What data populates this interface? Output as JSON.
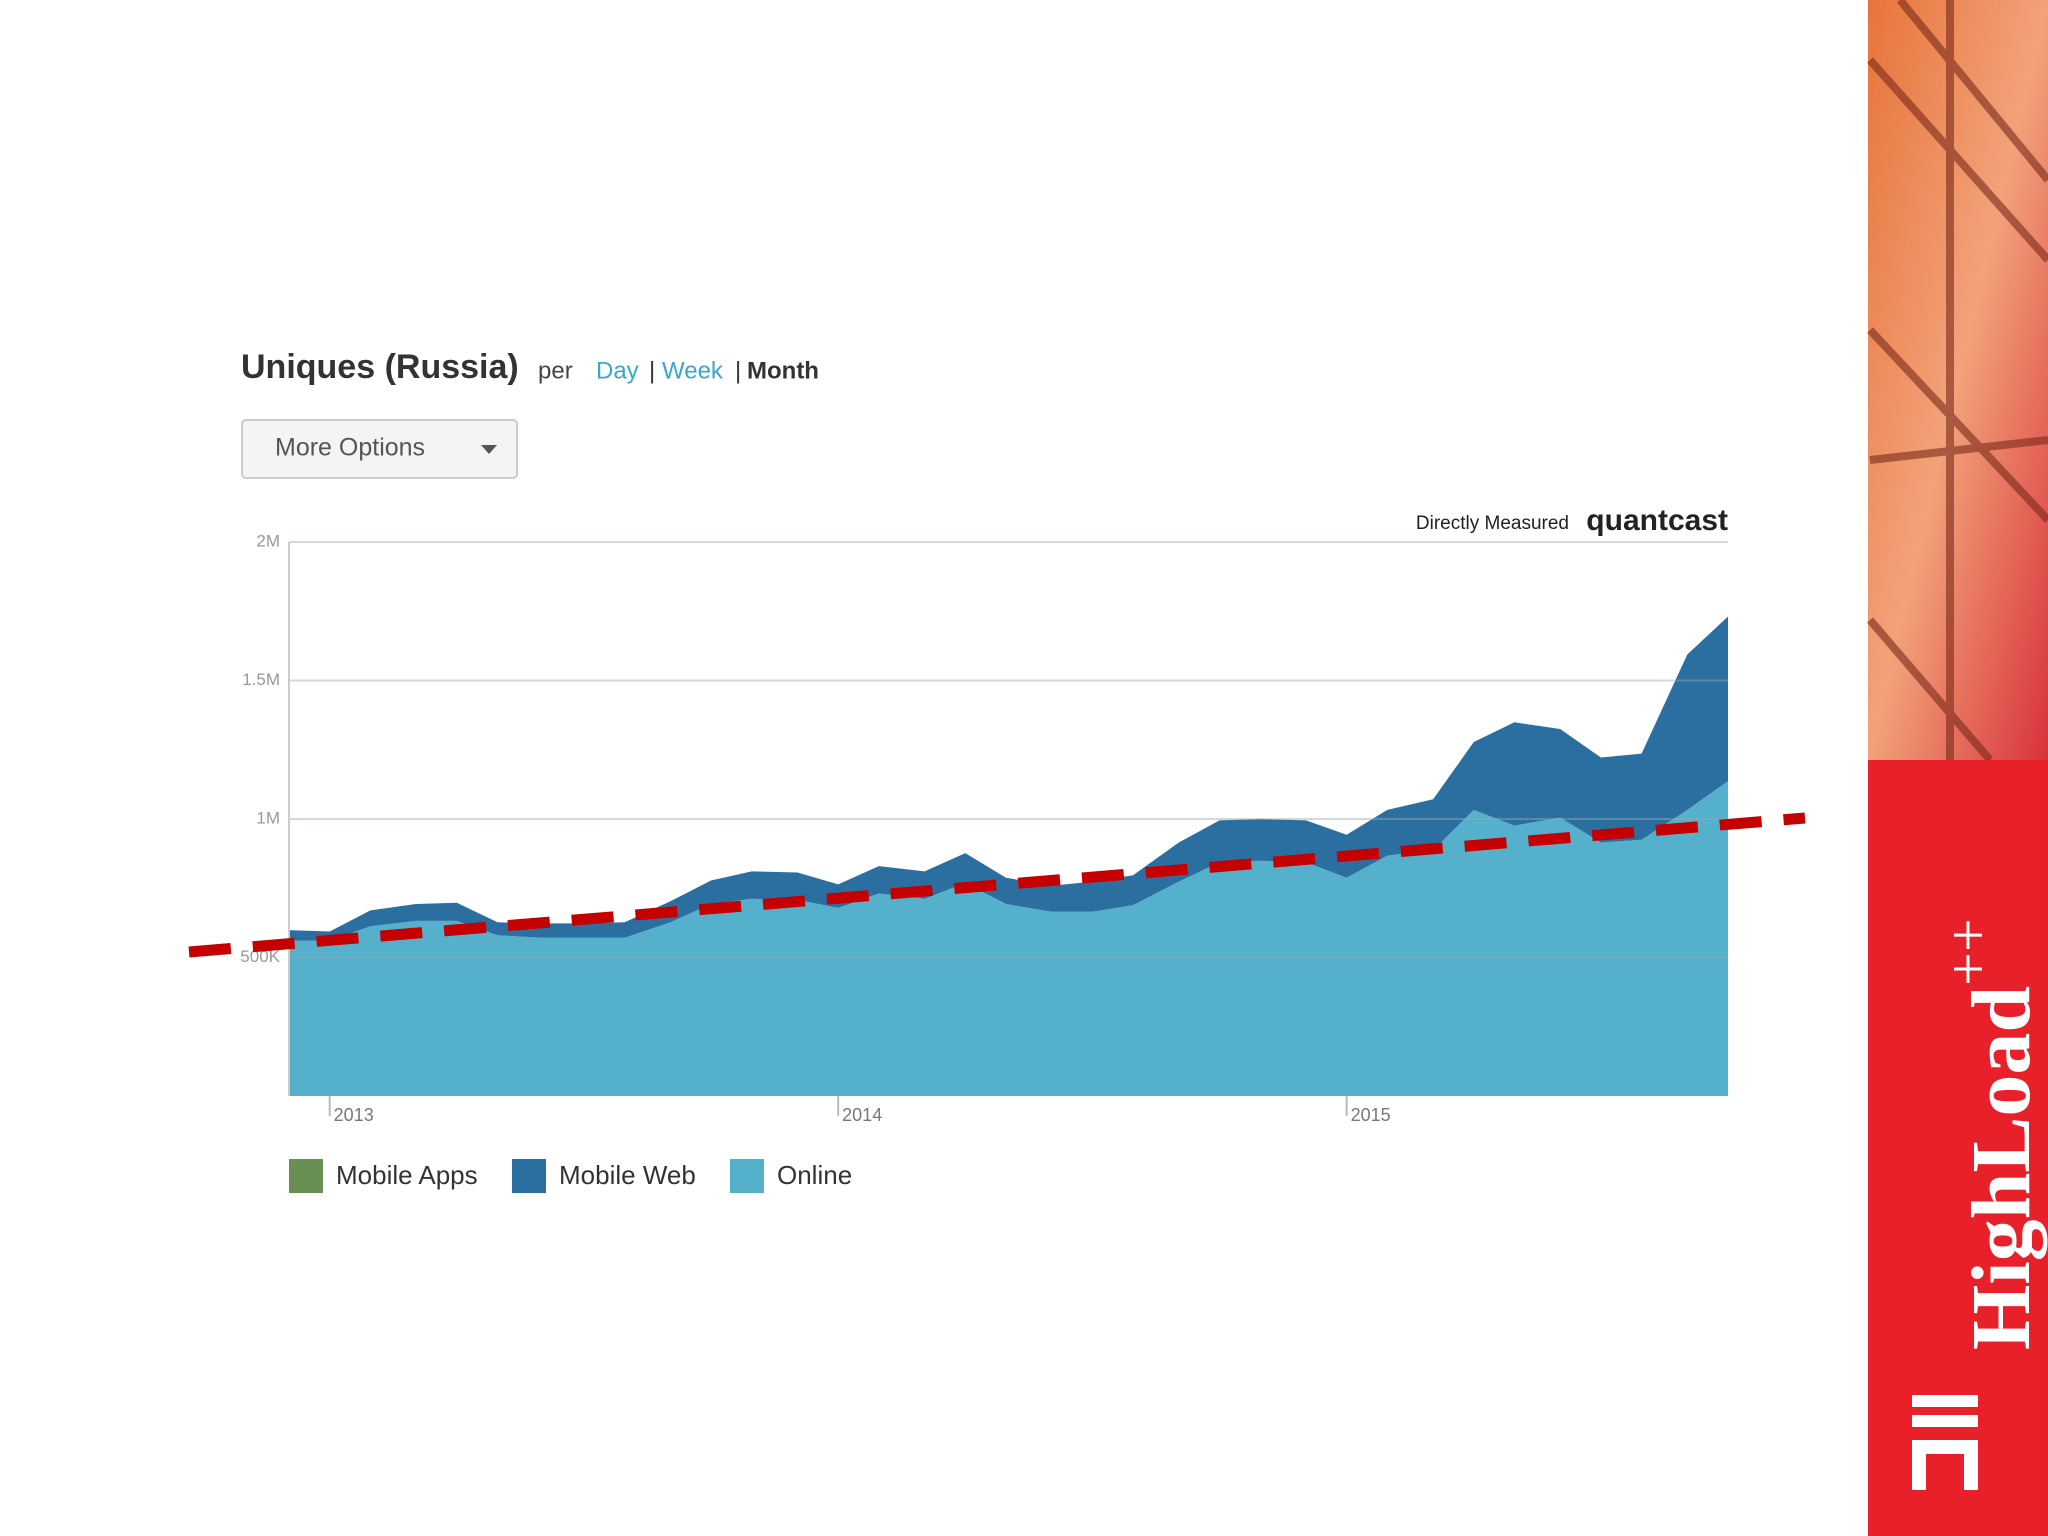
{
  "header": {
    "per": "per",
    "periods": [
      "Day",
      "Week",
      "Month"
    ],
    "active_period": 2,
    "separator": "|",
    "button": "More Options",
    "source_prefix": "Directly Measured",
    "source": "quantcast"
  },
  "branding": {
    "name": "HighLoad",
    "mark": "++"
  },
  "chart_data": {
    "type": "area",
    "title": "Uniques (Russia)",
    "stacked": true,
    "grid": true,
    "x": [
      2012.92,
      2013.0,
      2013.08,
      2013.17,
      2013.25,
      2013.33,
      2013.42,
      2013.5,
      2013.58,
      2013.67,
      2013.75,
      2013.83,
      2013.92,
      2014.0,
      2014.08,
      2014.17,
      2014.25,
      2014.33,
      2014.42,
      2014.5,
      2014.58,
      2014.67,
      2014.75,
      2014.83,
      2014.92,
      2015.0,
      2015.08,
      2015.17,
      2015.25,
      2015.33,
      2015.42,
      2015.5,
      2015.58,
      2015.67,
      2015.75
    ],
    "xlim": [
      2012.92,
      2015.75
    ],
    "xticks": [
      2013,
      2014,
      2015
    ],
    "ylim": [
      0,
      2000000
    ],
    "yticks": [
      {
        "value": 500000,
        "label": "500K"
      },
      {
        "value": 1000000,
        "label": "1M"
      },
      {
        "value": 1500000,
        "label": "1.5M"
      },
      {
        "value": 2000000,
        "label": "2M"
      }
    ],
    "series": [
      {
        "name": "Mobile Apps",
        "color": "#6a8f55",
        "values": [
          0,
          0,
          0,
          0,
          0,
          0,
          0,
          0,
          0,
          0,
          0,
          0,
          0,
          0,
          0,
          0,
          0,
          0,
          0,
          0,
          0,
          0,
          0,
          0,
          0,
          0,
          0,
          0,
          0,
          0,
          0,
          0,
          0,
          0,
          0
        ]
      },
      {
        "name": "Mobile Web",
        "color": "#2a6fa0",
        "values": [
          38000,
          33000,
          57000,
          61000,
          66000,
          47000,
          52000,
          52000,
          56000,
          76000,
          85000,
          99000,
          99000,
          85000,
          99000,
          99000,
          108000,
          95000,
          94000,
          109000,
          108000,
          141000,
          151000,
          151000,
          151000,
          155000,
          165000,
          184000,
          245000,
          373000,
          320000,
          307000,
          311000,
          561000,
          594000
        ]
      },
      {
        "name": "Online",
        "color": "#55b0cc",
        "values": [
          561000,
          561000,
          613000,
          632000,
          632000,
          580000,
          571000,
          571000,
          571000,
          627000,
          693000,
          712000,
          708000,
          679000,
          731000,
          712000,
          769000,
          693000,
          665000,
          665000,
          689000,
          774000,
          844000,
          849000,
          844000,
          788000,
          868000,
          887000,
          1033000,
          976000,
          1005000,
          915000,
          925000,
          1033000,
          1137000
        ]
      }
    ]
  }
}
